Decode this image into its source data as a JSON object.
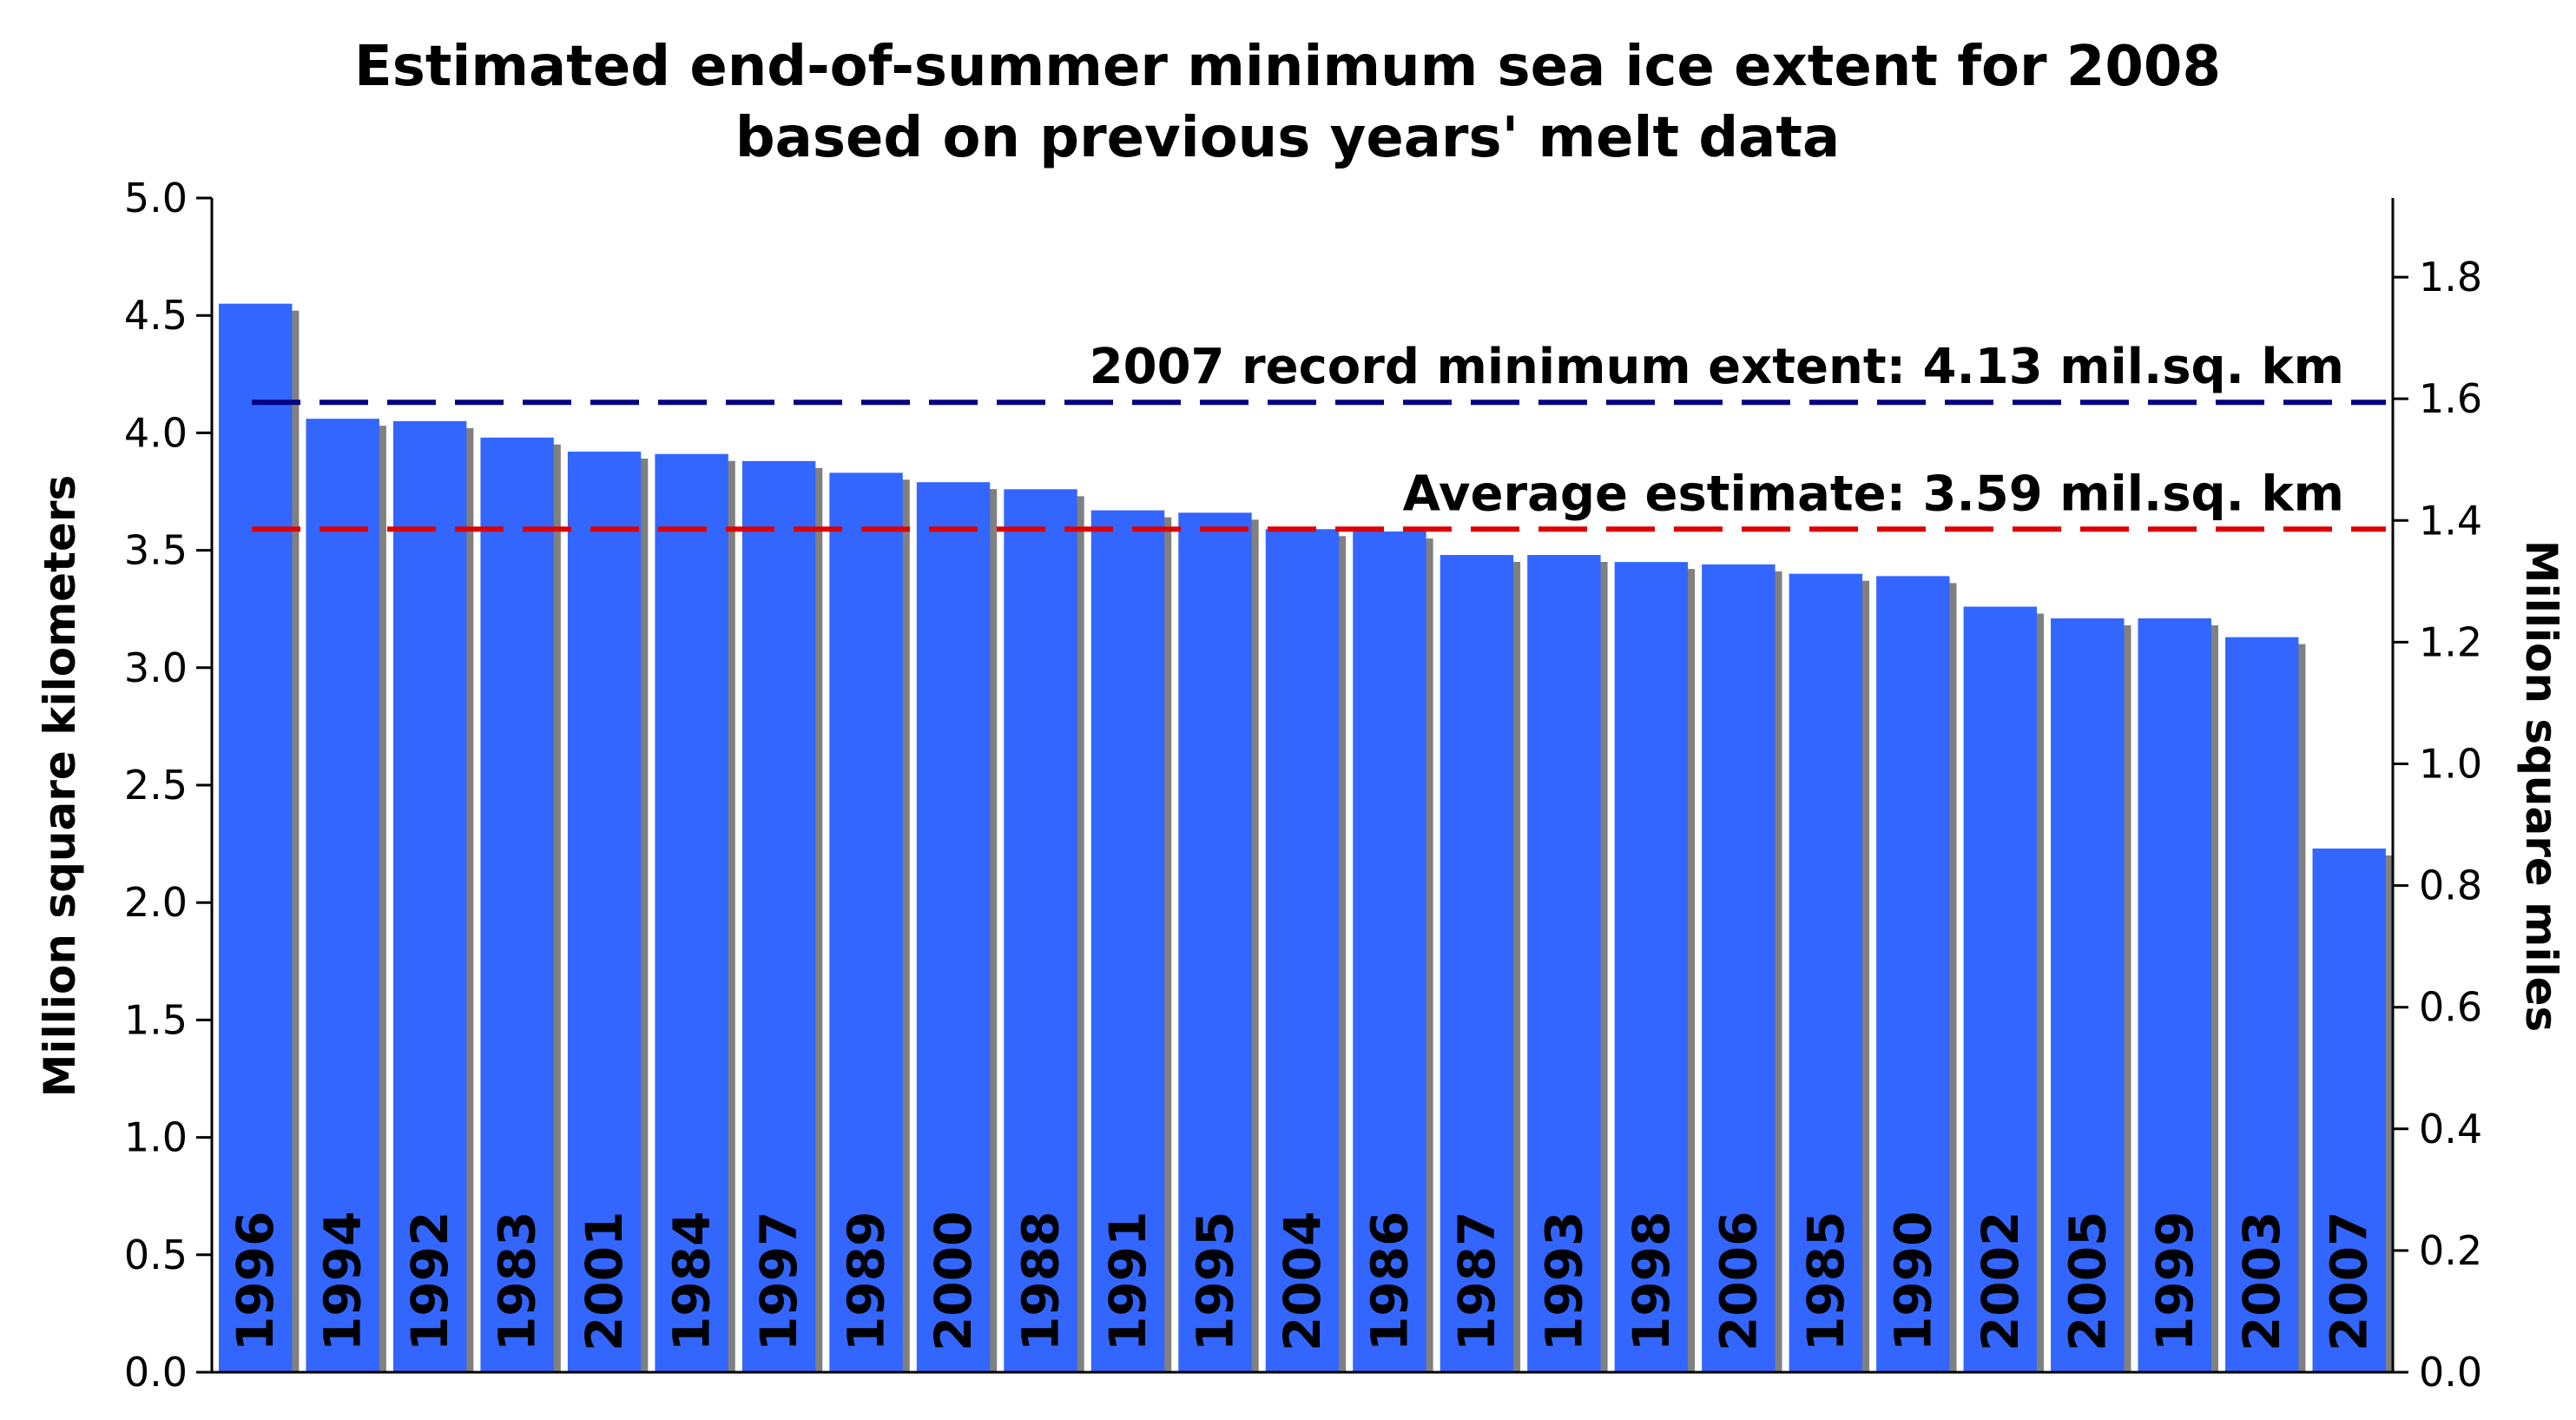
{
  "chart_data": {
    "type": "bar",
    "title": [
      "Estimated end-of-summer minimum sea ice extent for 2008",
      "based on previous years' melt data"
    ],
    "ylabel": "Million square kilometers",
    "ylabel_right": "Million square miles",
    "ylim": [
      0,
      5.0
    ],
    "y_ticks": [
      "0.0",
      "0.5",
      "1.0",
      "1.5",
      "2.0",
      "2.5",
      "3.0",
      "3.5",
      "4.0",
      "4.5",
      "5.0"
    ],
    "ylim_right": [
      0,
      1.93
    ],
    "y_ticks_right": [
      "0.0",
      "0.2",
      "0.4",
      "0.6",
      "0.8",
      "1.0",
      "1.2",
      "1.4",
      "1.6",
      "1.8"
    ],
    "categories": [
      "1996",
      "1994",
      "1992",
      "1983",
      "2001",
      "1984",
      "1997",
      "1989",
      "2000",
      "1988",
      "1991",
      "1995",
      "2004",
      "1986",
      "1987",
      "1993",
      "1998",
      "2006",
      "1985",
      "1990",
      "2002",
      "2005",
      "1999",
      "2003",
      "2007"
    ],
    "values": [
      4.55,
      4.06,
      4.05,
      3.98,
      3.92,
      3.91,
      3.88,
      3.83,
      3.79,
      3.76,
      3.67,
      3.66,
      3.59,
      3.58,
      3.48,
      3.48,
      3.45,
      3.44,
      3.4,
      3.39,
      3.26,
      3.21,
      3.21,
      3.13,
      2.23
    ],
    "bar_color": "#3366ff",
    "shadow_color": "#808080",
    "reference_lines": [
      {
        "label": "2007 record minimum extent: 4.13 mil.sq. km",
        "value": 4.13,
        "color": "#000080"
      },
      {
        "label": "Average estimate: 3.59 mil.sq. km",
        "value": 3.59,
        "color": "#dd0000"
      }
    ],
    "grid": false,
    "legend": "none"
  }
}
